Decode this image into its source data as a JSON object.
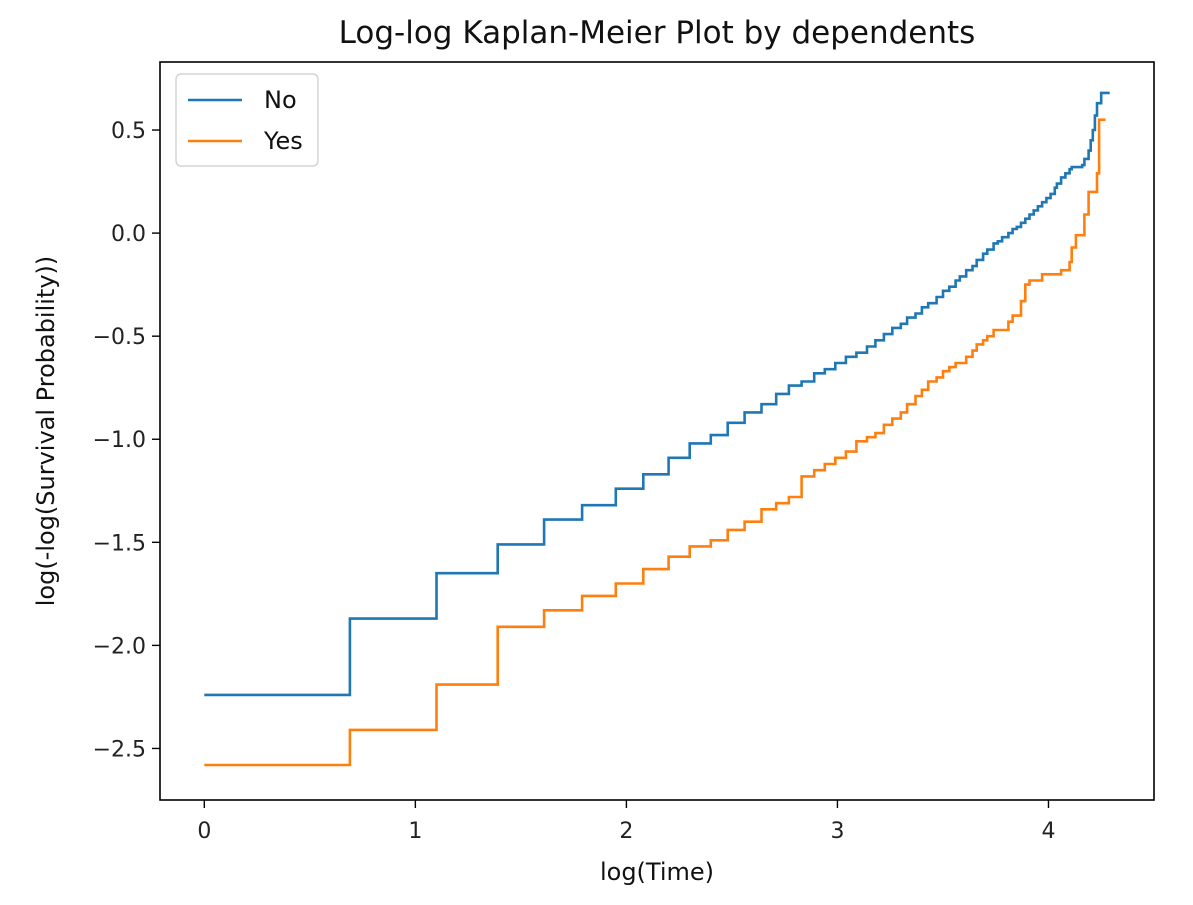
{
  "chart_data": {
    "type": "line",
    "title": "Log-log Kaplan-Meier Plot by dependents",
    "xlabel": "log(Time)",
    "ylabel": "log(-log(Survival Probability))",
    "xlim": [
      -0.21,
      4.5
    ],
    "ylim": [
      -2.75,
      0.83
    ],
    "xticks": [
      0,
      1,
      2,
      3,
      4
    ],
    "xtick_labels": [
      "0",
      "1",
      "2",
      "3",
      "4"
    ],
    "yticks": [
      0.5,
      0.0,
      -0.5,
      -1.0,
      -1.5,
      -2.0,
      -2.5
    ],
    "ytick_labels": [
      "0.5",
      "0.0",
      "−0.5",
      "−1.0",
      "−1.5",
      "−2.0",
      "−2.5"
    ],
    "grid": false,
    "legend_position": "top-left",
    "step": "post",
    "series": [
      {
        "name": "No",
        "color": "#1f77b4",
        "points": [
          [
            0.0,
            -2.24
          ],
          [
            0.69,
            -1.87
          ],
          [
            1.1,
            -1.65
          ],
          [
            1.39,
            -1.51
          ],
          [
            1.61,
            -1.39
          ],
          [
            1.79,
            -1.32
          ],
          [
            1.95,
            -1.24
          ],
          [
            2.08,
            -1.17
          ],
          [
            2.2,
            -1.09
          ],
          [
            2.3,
            -1.02
          ],
          [
            2.4,
            -0.98
          ],
          [
            2.48,
            -0.92
          ],
          [
            2.56,
            -0.87
          ],
          [
            2.64,
            -0.83
          ],
          [
            2.71,
            -0.78
          ],
          [
            2.77,
            -0.74
          ],
          [
            2.83,
            -0.72
          ],
          [
            2.89,
            -0.68
          ],
          [
            2.94,
            -0.66
          ],
          [
            2.99,
            -0.63
          ],
          [
            3.04,
            -0.6
          ],
          [
            3.09,
            -0.58
          ],
          [
            3.14,
            -0.55
          ],
          [
            3.18,
            -0.52
          ],
          [
            3.22,
            -0.49
          ],
          [
            3.26,
            -0.46
          ],
          [
            3.3,
            -0.44
          ],
          [
            3.33,
            -0.41
          ],
          [
            3.37,
            -0.39
          ],
          [
            3.4,
            -0.36
          ],
          [
            3.43,
            -0.34
          ],
          [
            3.47,
            -0.31
          ],
          [
            3.5,
            -0.28
          ],
          [
            3.53,
            -0.26
          ],
          [
            3.56,
            -0.23
          ],
          [
            3.58,
            -0.21
          ],
          [
            3.61,
            -0.18
          ],
          [
            3.64,
            -0.16
          ],
          [
            3.66,
            -0.13
          ],
          [
            3.69,
            -0.1
          ],
          [
            3.71,
            -0.08
          ],
          [
            3.74,
            -0.05
          ],
          [
            3.76,
            -0.04
          ],
          [
            3.78,
            -0.02
          ],
          [
            3.81,
            0.0
          ],
          [
            3.83,
            0.02
          ],
          [
            3.85,
            0.03
          ],
          [
            3.87,
            0.05
          ],
          [
            3.89,
            0.07
          ],
          [
            3.91,
            0.09
          ],
          [
            3.93,
            0.11
          ],
          [
            3.95,
            0.13
          ],
          [
            3.97,
            0.15
          ],
          [
            3.99,
            0.17
          ],
          [
            4.01,
            0.19
          ],
          [
            4.03,
            0.22
          ],
          [
            4.04,
            0.24
          ],
          [
            4.06,
            0.27
          ],
          [
            4.08,
            0.29
          ],
          [
            4.1,
            0.31
          ],
          [
            4.11,
            0.32
          ],
          [
            4.13,
            0.32
          ],
          [
            4.16,
            0.33
          ],
          [
            4.17,
            0.36
          ],
          [
            4.19,
            0.4
          ],
          [
            4.2,
            0.45
          ],
          [
            4.21,
            0.5
          ],
          [
            4.22,
            0.57
          ],
          [
            4.23,
            0.63
          ],
          [
            4.25,
            0.68
          ],
          [
            4.29,
            0.68
          ]
        ]
      },
      {
        "name": "Yes",
        "color": "#ff7f0e",
        "points": [
          [
            0.0,
            -2.58
          ],
          [
            0.69,
            -2.41
          ],
          [
            1.1,
            -2.19
          ],
          [
            1.39,
            -1.91
          ],
          [
            1.61,
            -1.83
          ],
          [
            1.79,
            -1.76
          ],
          [
            1.95,
            -1.7
          ],
          [
            2.08,
            -1.63
          ],
          [
            2.2,
            -1.57
          ],
          [
            2.3,
            -1.52
          ],
          [
            2.4,
            -1.49
          ],
          [
            2.48,
            -1.44
          ],
          [
            2.56,
            -1.4
          ],
          [
            2.64,
            -1.34
          ],
          [
            2.71,
            -1.31
          ],
          [
            2.77,
            -1.28
          ],
          [
            2.83,
            -1.18
          ],
          [
            2.89,
            -1.15
          ],
          [
            2.94,
            -1.12
          ],
          [
            2.99,
            -1.09
          ],
          [
            3.04,
            -1.06
          ],
          [
            3.09,
            -1.01
          ],
          [
            3.14,
            -0.99
          ],
          [
            3.18,
            -0.97
          ],
          [
            3.22,
            -0.93
          ],
          [
            3.26,
            -0.9
          ],
          [
            3.3,
            -0.87
          ],
          [
            3.33,
            -0.83
          ],
          [
            3.37,
            -0.79
          ],
          [
            3.4,
            -0.76
          ],
          [
            3.43,
            -0.72
          ],
          [
            3.47,
            -0.7
          ],
          [
            3.5,
            -0.67
          ],
          [
            3.53,
            -0.65
          ],
          [
            3.56,
            -0.63
          ],
          [
            3.61,
            -0.6
          ],
          [
            3.64,
            -0.57
          ],
          [
            3.66,
            -0.54
          ],
          [
            3.69,
            -0.52
          ],
          [
            3.71,
            -0.5
          ],
          [
            3.74,
            -0.47
          ],
          [
            3.81,
            -0.43
          ],
          [
            3.83,
            -0.4
          ],
          [
            3.87,
            -0.33
          ],
          [
            3.89,
            -0.25
          ],
          [
            3.91,
            -0.23
          ],
          [
            3.97,
            -0.2
          ],
          [
            4.06,
            -0.18
          ],
          [
            4.1,
            -0.14
          ],
          [
            4.11,
            -0.07
          ],
          [
            4.13,
            -0.01
          ],
          [
            4.17,
            0.09
          ],
          [
            4.19,
            0.2
          ],
          [
            4.23,
            0.29
          ],
          [
            4.24,
            0.55
          ],
          [
            4.27,
            0.55
          ]
        ]
      }
    ]
  }
}
